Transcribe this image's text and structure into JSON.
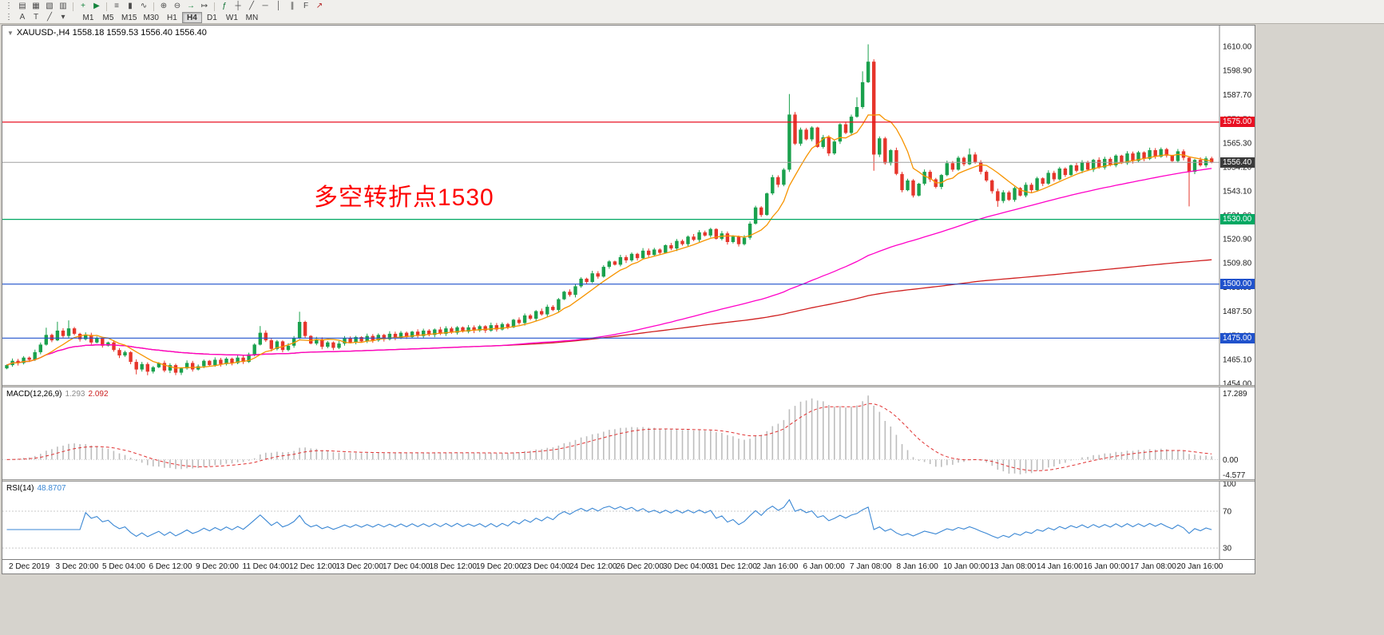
{
  "toolbar": {
    "row1_icons": [
      {
        "name": "toolbar-grip-icon",
        "glyph": "⋮"
      },
      {
        "name": "market-watch-icon",
        "glyph": "▤"
      },
      {
        "name": "data-window-icon",
        "glyph": "▦"
      },
      {
        "name": "navigator-icon",
        "glyph": "▧"
      },
      {
        "name": "terminal-icon",
        "glyph": "▥"
      },
      {
        "sep": true
      },
      {
        "name": "new-order-icon",
        "glyph": "+",
        "color": "#14843c"
      },
      {
        "name": "autotrading-icon",
        "glyph": "▶",
        "color": "#14843c"
      },
      {
        "sep": true
      },
      {
        "name": "bars-chart-icon",
        "glyph": "≡"
      },
      {
        "name": "candlestick-chart-icon",
        "glyph": "▮"
      },
      {
        "name": "line-chart-icon",
        "glyph": "∿"
      },
      {
        "sep": true
      },
      {
        "name": "zoom-in-icon",
        "glyph": "⊕"
      },
      {
        "name": "zoom-out-icon",
        "glyph": "⊖"
      },
      {
        "name": "auto-scroll-icon",
        "glyph": "→",
        "color": "#14843c"
      },
      {
        "name": "chart-shift-icon",
        "glyph": "↦"
      },
      {
        "sep": true
      },
      {
        "name": "indicators-icon",
        "glyph": "ƒ",
        "color": "#0a6e2f"
      },
      {
        "name": "crosshair-icon",
        "glyph": "┼"
      },
      {
        "name": "trendline-icon",
        "glyph": "╱"
      },
      {
        "name": "horizontal-line-icon",
        "glyph": "─"
      },
      {
        "name": "vertical-line-icon",
        "glyph": "│"
      },
      {
        "name": "channel-icon",
        "glyph": "∥"
      },
      {
        "name": "fibonacci-icon",
        "glyph": "F"
      },
      {
        "name": "arrows-icon",
        "glyph": "↗",
        "color": "#b22222"
      }
    ],
    "row2_icons": [
      {
        "name": "toolbar-grip-icon",
        "glyph": "⋮"
      },
      {
        "name": "text-tool-icon",
        "glyph": "A"
      },
      {
        "name": "text-label-tool-icon",
        "glyph": "T"
      },
      {
        "name": "line-style-icon",
        "glyph": "╱"
      },
      {
        "name": "dropdown-arrow-icon",
        "glyph": "▾"
      }
    ],
    "timeframes": {
      "items": [
        "M1",
        "M5",
        "M15",
        "M30",
        "H1",
        "H4",
        "D1",
        "W1",
        "MN"
      ],
      "active": "H4"
    }
  },
  "chart": {
    "collapse_icon": "▼",
    "title": "XAUUSD-,H4  1558.18 1559.53 1556.40 1556.40",
    "symbol": "XAUUSD-",
    "period": "H4",
    "annotation": {
      "text": "多空转折点1530",
      "color": "#fe0000"
    },
    "price_ticks": [
      "1610.00",
      "1598.90",
      "1587.70",
      "1576.50",
      "1565.30",
      "1554.20",
      "1543.10",
      "1531.90",
      "1520.90",
      "1509.80",
      "1498.60",
      "1487.50",
      "1476.30",
      "1465.10",
      "1454.00"
    ],
    "hlines": [
      {
        "price": 1575.0,
        "label": "1575.00",
        "color": "#e81022"
      },
      {
        "price": 1530.0,
        "label": "1530.00",
        "color": "#00a862"
      },
      {
        "price": 1500.0,
        "label": "1500.00",
        "color": "#2052cc"
      },
      {
        "price": 1475.0,
        "label": "1475.00",
        "color": "#2052cc"
      }
    ],
    "bid_line": {
      "price": 1556.4,
      "label": "1556.40",
      "color": "#a0a0a0",
      "label_bg": "#3a3a3a"
    },
    "time_ticks": [
      "2 Dec 2019",
      "3 Dec 20:00",
      "5 Dec 04:00",
      "6 Dec 12:00",
      "9 Dec 20:00",
      "11 Dec 04:00",
      "12 Dec 12:00",
      "13 Dec 20:00",
      "17 Dec 04:00",
      "18 Dec 12:00",
      "19 Dec 20:00",
      "23 Dec 04:00",
      "24 Dec 12:00",
      "26 Dec 20:00",
      "30 Dec 04:00",
      "31 Dec 12:00",
      "2 Jan 16:00",
      "6 Jan 00:00",
      "7 Jan 08:00",
      "8 Jan 16:00",
      "10 Jan 00:00",
      "13 Jan 08:00",
      "14 Jan 16:00",
      "16 Jan 00:00",
      "17 Jan 08:00",
      "20 Jan 16:00"
    ],
    "colors": {
      "up": "#1aa14d",
      "down": "#e6352b",
      "ma_fast": "#f79400",
      "ma_mid": "#ff00c8",
      "ma_slow": "#d02020",
      "bg": "#ffffff"
    }
  },
  "indicators": {
    "macd": {
      "label": "MACD(12,26,9)",
      "value_main": "1.293",
      "value_signal": "2.092",
      "fast": 12,
      "slow": 26,
      "signal": 9,
      "ticks": {
        "top": "17.289",
        "zero": "0.00",
        "bottom": "-4.577"
      },
      "hist_color": "#bdbdbd",
      "signal_color": "#e03030"
    },
    "rsi": {
      "label": "RSI(14)",
      "value": "48.8707",
      "period": 14,
      "ticks": [
        "100",
        "70",
        "30"
      ],
      "levels": [
        70,
        30
      ],
      "range": [
        18,
        102
      ],
      "line_color": "#3a87d4"
    }
  },
  "chart_data": {
    "type": "candlestick",
    "symbol": "XAUUSD",
    "timeframe": "H4",
    "title": "XAUUSD-,H4 1558.18 1559.53 1556.40 1556.40",
    "price_range": [
      1453.3,
      1619.7
    ],
    "first_open": 1461.0,
    "default_wick": 1.1,
    "closes": [
      1462.5,
      1464.5,
      1463.5,
      1466.0,
      1465.0,
      1468.5,
      1472.0,
      1476.5,
      1474.0,
      1478.5,
      1476.0,
      1479.5,
      1477.0,
      1474.5,
      1476.5,
      1473.0,
      1475.0,
      1471.5,
      1473.0,
      1469.5,
      1467.0,
      1468.5,
      1464.0,
      1460.5,
      1463.0,
      1459.5,
      1461.5,
      1463.5,
      1460.0,
      1462.5,
      1459.0,
      1461.0,
      1463.5,
      1460.5,
      1462.0,
      1464.5,
      1462.5,
      1465.0,
      1463.0,
      1465.5,
      1463.5,
      1466.0,
      1464.0,
      1467.5,
      1472.0,
      1477.5,
      1474.0,
      1470.0,
      1473.5,
      1469.5,
      1471.5,
      1475.0,
      1482.5,
      1476.0,
      1472.5,
      1474.5,
      1471.0,
      1473.0,
      1470.5,
      1472.5,
      1475.0,
      1473.0,
      1475.5,
      1473.5,
      1476.0,
      1474.0,
      1476.5,
      1474.5,
      1477.0,
      1475.0,
      1477.5,
      1475.5,
      1478.0,
      1476.0,
      1478.5,
      1476.5,
      1479.0,
      1477.0,
      1479.5,
      1477.5,
      1480.0,
      1478.0,
      1480.0,
      1478.5,
      1480.5,
      1478.5,
      1481.0,
      1479.0,
      1481.5,
      1480.0,
      1483.5,
      1482.0,
      1485.5,
      1484.0,
      1487.5,
      1486.0,
      1489.5,
      1488.0,
      1493.0,
      1496.5,
      1495.0,
      1499.0,
      1502.5,
      1501.0,
      1505.0,
      1503.5,
      1508.0,
      1510.5,
      1509.0,
      1512.5,
      1511.0,
      1514.0,
      1512.0,
      1515.5,
      1513.5,
      1516.0,
      1514.5,
      1518.0,
      1516.5,
      1520.0,
      1518.5,
      1522.0,
      1520.5,
      1524.0,
      1522.5,
      1525.5,
      1521.0,
      1523.5,
      1519.5,
      1522.0,
      1518.5,
      1521.5,
      1528.0,
      1535.5,
      1532.0,
      1542.0,
      1549.5,
      1546.0,
      1553.0,
      1578.5,
      1565.0,
      1571.5,
      1567.0,
      1572.5,
      1563.5,
      1568.0,
      1560.5,
      1566.0,
      1574.0,
      1570.0,
      1577.5,
      1582.0,
      1593.5,
      1603.0,
      1560.0,
      1567.5,
      1556.0,
      1562.0,
      1551.0,
      1543.5,
      1548.0,
      1541.0,
      1546.5,
      1552.0,
      1548.5,
      1545.0,
      1550.5,
      1556.0,
      1553.0,
      1558.5,
      1555.5,
      1560.0,
      1556.5,
      1552.0,
      1548.0,
      1543.0,
      1538.5,
      1542.5,
      1539.0,
      1544.5,
      1541.0,
      1546.0,
      1543.5,
      1549.0,
      1546.5,
      1551.5,
      1548.5,
      1553.5,
      1550.5,
      1555.0,
      1552.5,
      1556.5,
      1553.0,
      1557.5,
      1554.0,
      1558.0,
      1555.0,
      1559.5,
      1556.0,
      1560.5,
      1557.0,
      1561.0,
      1558.0,
      1562.0,
      1559.0,
      1562.5,
      1559.5,
      1557.0,
      1561.5,
      1558.5,
      1552.0,
      1557.5,
      1555.0,
      1558.2,
      1556.4
    ],
    "high_overrides": {
      "7": 1479.8,
      "9": 1482.6,
      "11": 1483.2,
      "45": 1480.6,
      "52": 1487.2,
      "139": 1588.0,
      "151": 1586.5,
      "152": 1598.5,
      "153": 1611.0,
      "171": 1562.8
    },
    "low_overrides": {
      "23": 1458.2,
      "25": 1457.8,
      "30": 1457.9,
      "154": 1552.5,
      "176": 1535.8,
      "210": 1536.0
    },
    "ma_periods": {
      "fast": 8,
      "mid": 89,
      "slow": 2000
    },
    "hline_levels": [
      1575.0,
      1530.0,
      1500.0,
      1475.0
    ],
    "current_price": 1556.4
  }
}
